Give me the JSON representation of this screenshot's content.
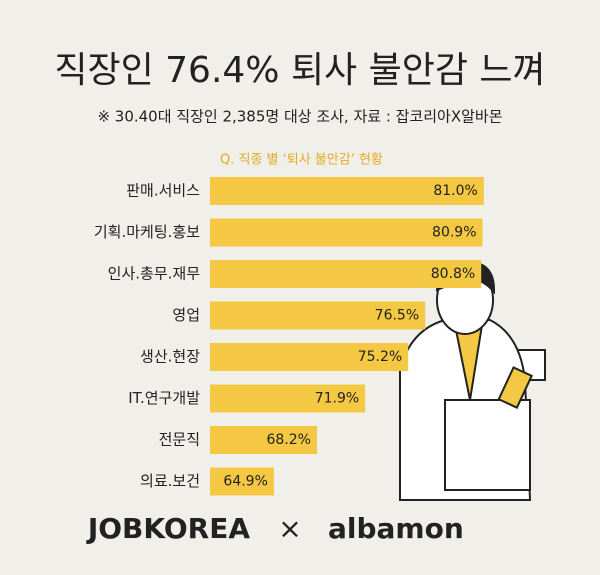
{
  "chart_data": {
    "type": "bar",
    "orientation": "horizontal",
    "title": "직장인 76.4% 퇴사 불안감 느껴",
    "subtitle": "※ 30.40대  직장인 2,385명 대상 조사, 자료 : 잡코리아X알바몬",
    "chart_title": "Q. 직종 별 ‘퇴사 불안감’ 현황",
    "categories": [
      "판매.서비스",
      "기획.마케팅.홍보",
      "인사.총무.재무",
      "영업",
      "생산.현장",
      "IT.연구개발",
      "전문직",
      "의료.보건"
    ],
    "values": [
      81.0,
      80.9,
      80.8,
      76.5,
      75.2,
      71.9,
      68.2,
      64.9
    ],
    "value_labels": [
      "81.0%",
      "80.9%",
      "80.8%",
      "76.5%",
      "75.2%",
      "71.9%",
      "68.2%",
      "64.9%"
    ],
    "color": "#f4c842",
    "xlim": [
      60,
      85
    ]
  },
  "footer": {
    "brand_1": "JOBKOREA",
    "separator": "×",
    "brand_2": "albamon"
  }
}
